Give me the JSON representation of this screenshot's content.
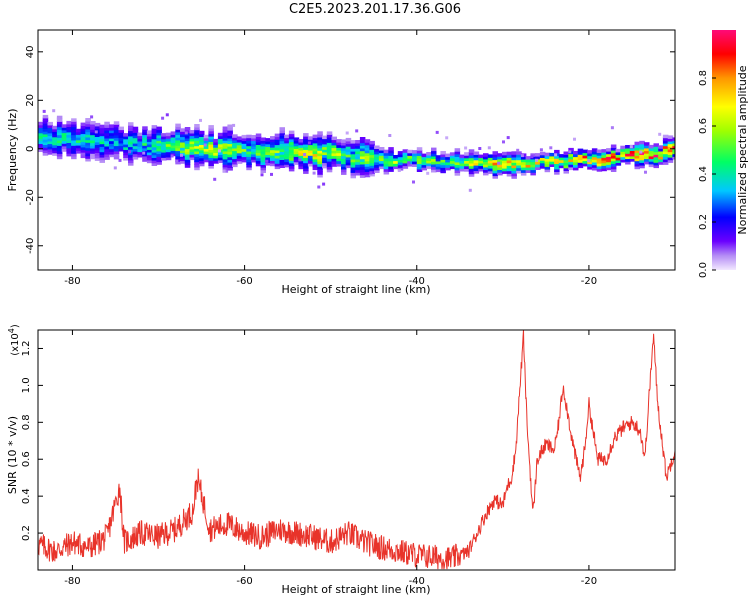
{
  "title": "C2E5.2023.201.17.36.G06",
  "chart_data": [
    {
      "type": "heatmap",
      "xlabel": "Height of straight line (km)",
      "ylabel": "Frequency (Hz)",
      "xlim": [
        -84,
        -10
      ],
      "ylim": [
        -50,
        49
      ],
      "x_ticks": [
        "-80",
        "-60",
        "-40",
        "-20"
      ],
      "y_ticks": [
        "40",
        "20",
        "0",
        "-20",
        "-40"
      ],
      "colorbar": {
        "label": "Normalized spectral amplitude",
        "range": [
          0.0,
          1.0
        ],
        "ticks": [
          "0.0",
          "0.2",
          "0.4",
          "0.6",
          "0.8"
        ]
      },
      "ridge": {
        "x": [
          -84,
          -80,
          -76,
          -72,
          -68,
          -64,
          -60,
          -56,
          -52,
          -48,
          -44,
          -40,
          -36,
          -32,
          -28,
          -24,
          -20,
          -16,
          -12,
          -10
        ],
        "frequency": [
          5,
          4,
          3,
          2,
          1,
          0,
          -1,
          -1,
          -1,
          -3,
          -4,
          -5,
          -5,
          -6,
          -6,
          -5,
          -4,
          -3,
          -2,
          0
        ],
        "peak_amplitude": [
          0.45,
          0.45,
          0.4,
          0.45,
          0.6,
          0.7,
          0.55,
          0.6,
          0.75,
          0.55,
          0.7,
          0.6,
          0.55,
          0.8,
          0.8,
          0.75,
          0.9,
          0.95,
          0.95,
          0.9
        ]
      }
    },
    {
      "type": "line",
      "xlabel": "Height of straight line (km)",
      "ylabel": "SNR (10 * v/v)",
      "y_multiplier": "(x10",
      "y_multiplier_exp": "4",
      "y_multiplier_close": ")",
      "xlim": [
        -84,
        -10
      ],
      "ylim": [
        0,
        1.3
      ],
      "x_ticks": [
        "-80",
        "-60",
        "-40",
        "-20"
      ],
      "y_ticks": [
        "0.2",
        "0.4",
        "0.6",
        "0.8",
        "1.0",
        "1.2"
      ],
      "color": "#e8332a",
      "series": [
        {
          "x": [
            -84,
            -82,
            -80,
            -78,
            -76,
            -74.5,
            -74,
            -72,
            -70,
            -68,
            -66,
            -65.5,
            -64,
            -62,
            -60,
            -58,
            -56,
            -54,
            -52,
            -50,
            -48,
            -46,
            -44,
            -42,
            -40,
            -38,
            -36,
            -34,
            -33,
            -32,
            -31,
            -30,
            -29.5,
            -29,
            -28.5,
            -28,
            -27.6,
            -27.2,
            -26.5,
            -26,
            -25,
            -24,
            -23.5,
            -23,
            -22,
            -21.5,
            -21,
            -20.5,
            -20,
            -19.5,
            -19,
            -18,
            -17,
            -16,
            -15,
            -14.5,
            -14,
            -13.5,
            -13,
            -12.5,
            -12,
            -11,
            -10
          ],
          "y": [
            0.14,
            0.1,
            0.15,
            0.12,
            0.18,
            0.45,
            0.15,
            0.2,
            0.18,
            0.22,
            0.32,
            0.5,
            0.22,
            0.25,
            0.2,
            0.18,
            0.22,
            0.2,
            0.18,
            0.15,
            0.2,
            0.15,
            0.12,
            0.1,
            0.08,
            0.07,
            0.06,
            0.1,
            0.2,
            0.3,
            0.38,
            0.35,
            0.45,
            0.5,
            0.65,
            1.0,
            1.27,
            0.8,
            0.3,
            0.6,
            0.68,
            0.65,
            0.8,
            1.0,
            0.72,
            0.6,
            0.5,
            0.65,
            0.9,
            0.75,
            0.6,
            0.6,
            0.72,
            0.77,
            0.8,
            0.78,
            0.75,
            0.6,
            0.95,
            1.27,
            0.9,
            0.5,
            0.65
          ]
        }
      ]
    }
  ]
}
